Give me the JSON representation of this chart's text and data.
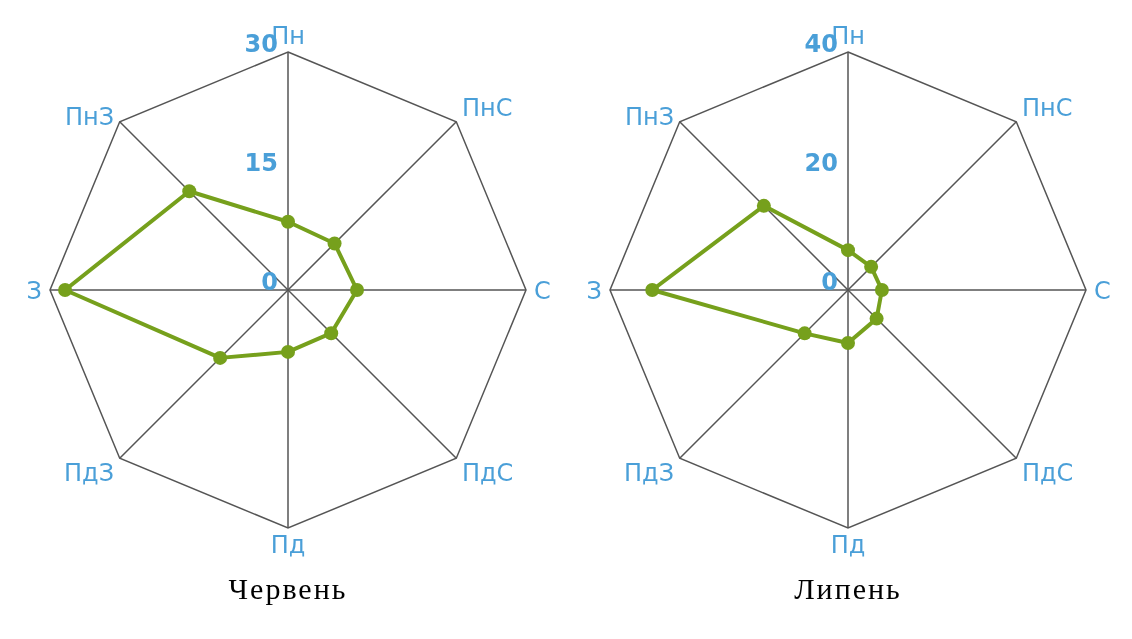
{
  "chart_data": [
    {
      "type": "radar",
      "title": "Червень",
      "categories": [
        "Пн",
        "ПнС",
        "С",
        "ПдС",
        "Пд",
        "ПдЗ",
        "З",
        "ПнЗ"
      ],
      "series": [
        {
          "color": "#76a01c",
          "values": [
            8.6,
            8.3,
            8.7,
            7.7,
            7.8,
            12.1,
            28.1,
            17.6
          ]
        }
      ],
      "ylim": [
        0,
        30
      ],
      "yticks": [
        0,
        15,
        30
      ],
      "grid": true,
      "marker": "circle",
      "legend": false
    },
    {
      "type": "radar",
      "title": "Липень",
      "categories": [
        "Пн",
        "ПнС",
        "С",
        "ПдС",
        "Пд",
        "ПдЗ",
        "З",
        "ПнЗ"
      ],
      "series": [
        {
          "color": "#76a01c",
          "values": [
            6.7,
            5.5,
            5.7,
            6.8,
            8.9,
            10.3,
            32.9,
            20
          ]
        }
      ],
      "ylim": [
        0,
        40
      ],
      "yticks": [
        0,
        20,
        40
      ],
      "grid": true,
      "marker": "circle",
      "legend": false
    }
  ]
}
